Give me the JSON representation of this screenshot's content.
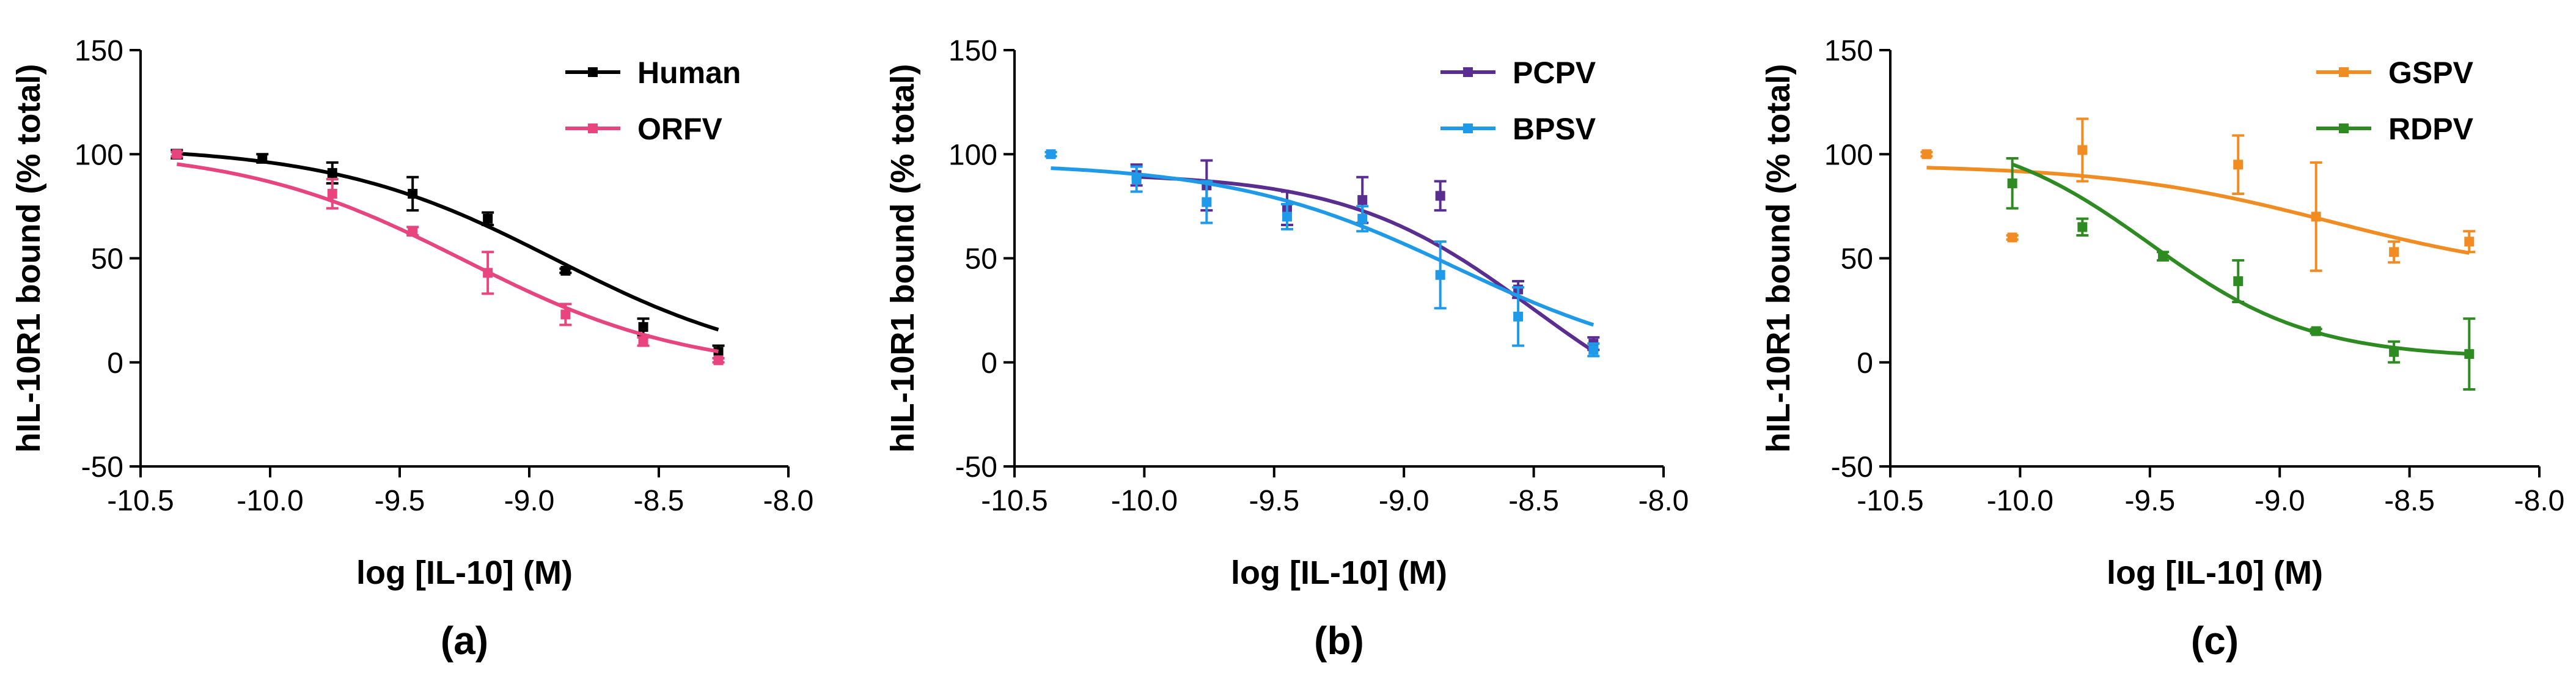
{
  "chart_data": [
    {
      "type": "line",
      "panel_label": "(a)",
      "xlabel": "log [IL-10] (M)",
      "ylabel": "hIL-10R1 bound (% total)",
      "xlim": [
        -10.5,
        -8.0
      ],
      "ylim": [
        -50,
        150
      ],
      "x_ticks": [
        -10.5,
        -10.0,
        -9.5,
        -9.0,
        -8.5,
        -8.0
      ],
      "x_tick_labels": [
        "-10.5",
        "-10.0",
        "-9.5",
        "-9.0",
        "-8.5",
        "-8.0"
      ],
      "y_ticks": [
        -50,
        0,
        50,
        100,
        150
      ],
      "y_tick_labels": [
        "-50",
        "0",
        "50",
        "100",
        "150"
      ],
      "legend_position": "top-right",
      "series": [
        {
          "name": "Human",
          "color": "#000000",
          "x": [
            -10.36,
            -10.03,
            -9.76,
            -9.45,
            -9.16,
            -8.86,
            -8.56,
            -8.27
          ],
          "y": [
            100,
            98,
            91,
            81,
            69,
            44,
            17,
            5
          ],
          "err": [
            2,
            2,
            5,
            8,
            3,
            1,
            4,
            3
          ],
          "fit": {
            "top": 104,
            "bottom": -5,
            "logIC50": -8.9,
            "hill": 1.0
          }
        },
        {
          "name": "ORFV",
          "color": "#e8447e",
          "x": [
            -10.36,
            -9.76,
            -9.45,
            -9.16,
            -8.86,
            -8.56,
            -8.27
          ],
          "y": [
            100,
            81,
            63,
            43,
            23,
            10,
            1
          ],
          "err": [
            1,
            7,
            2,
            10,
            5,
            2,
            1
          ],
          "fit": {
            "top": 103,
            "bottom": -5,
            "logIC50": -9.25,
            "hill": 1.0
          }
        }
      ]
    },
    {
      "type": "line",
      "panel_label": "(b)",
      "xlabel": "log [IL-10] (M)",
      "ylabel": "hIL-10R1 bound (% total)",
      "xlim": [
        -10.5,
        -8.0
      ],
      "ylim": [
        -50,
        150
      ],
      "x_ticks": [
        -10.5,
        -10.0,
        -9.5,
        -9.0,
        -8.5,
        -8.0
      ],
      "x_tick_labels": [
        "-10.5",
        "-10.0",
        "-9.5",
        "-9.0",
        "-8.5",
        "-8.0"
      ],
      "y_ticks": [
        -50,
        0,
        50,
        100,
        150
      ],
      "y_tick_labels": [
        "-50",
        "0",
        "50",
        "100",
        "150"
      ],
      "legend_position": "top-right",
      "series": [
        {
          "name": "PCPV",
          "color": "#5a2d91",
          "x": [
            -10.03,
            -9.76,
            -9.45,
            -9.16,
            -8.86,
            -8.56,
            -8.27
          ],
          "y": [
            90,
            85,
            74,
            78,
            80,
            35,
            9
          ],
          "err": [
            5,
            12,
            8,
            11,
            7,
            4,
            3
          ],
          "fit": {
            "top": 91,
            "bottom": -40,
            "logIC50": -8.5,
            "hill": 1.2
          }
        },
        {
          "name": "BPSV",
          "color": "#1f9ae8",
          "x": [
            -10.36,
            -10.03,
            -9.76,
            -9.45,
            -9.16,
            -8.86,
            -8.56,
            -8.27
          ],
          "y": [
            100,
            88,
            77,
            70,
            69,
            42,
            22,
            6
          ],
          "err": [
            1,
            6,
            10,
            6,
            6,
            16,
            14,
            3
          ],
          "fit": {
            "top": 96,
            "bottom": -5,
            "logIC50": -8.8,
            "hill": 1.0
          }
        }
      ]
    },
    {
      "type": "line",
      "panel_label": "(c)",
      "xlabel": "log [IL-10] (M)",
      "ylabel": "hIL-10R1 bound (% total)",
      "xlim": [
        -10.5,
        -8.0
      ],
      "ylim": [
        -50,
        150
      ],
      "x_ticks": [
        -10.5,
        -10.0,
        -9.5,
        -9.0,
        -8.5,
        -8.0
      ],
      "x_tick_labels": [
        "-10.5",
        "-10.0",
        "-9.5",
        "-9.0",
        "-8.5",
        "-8.0"
      ],
      "y_ticks": [
        -50,
        0,
        50,
        100,
        150
      ],
      "y_tick_labels": [
        "-50",
        "0",
        "50",
        "100",
        "150"
      ],
      "legend_position": "top-right",
      "series": [
        {
          "name": "GSPV",
          "color": "#f08c22",
          "x": [
            -10.36,
            -10.03,
            -9.76,
            -9.16,
            -8.86,
            -8.56,
            -8.27
          ],
          "y": [
            100,
            60,
            102,
            95,
            70,
            53,
            58
          ],
          "err": [
            1,
            1,
            15,
            14,
            26,
            5,
            5
          ],
          "fit": {
            "top": 95,
            "bottom": 40,
            "logIC50": -8.8,
            "hill": 1.0
          }
        },
        {
          "name": "RDPV",
          "color": "#2e8b22",
          "x": [
            -10.03,
            -9.76,
            -9.45,
            -9.16,
            -8.86,
            -8.56,
            -8.27
          ],
          "y": [
            86,
            65,
            51,
            39,
            15,
            5,
            4
          ],
          "err": [
            12,
            4,
            2,
            10,
            1,
            5,
            17
          ],
          "fit": {
            "top": 112,
            "bottom": 2,
            "logIC50": -9.5,
            "hill": 1.4
          }
        }
      ]
    }
  ]
}
